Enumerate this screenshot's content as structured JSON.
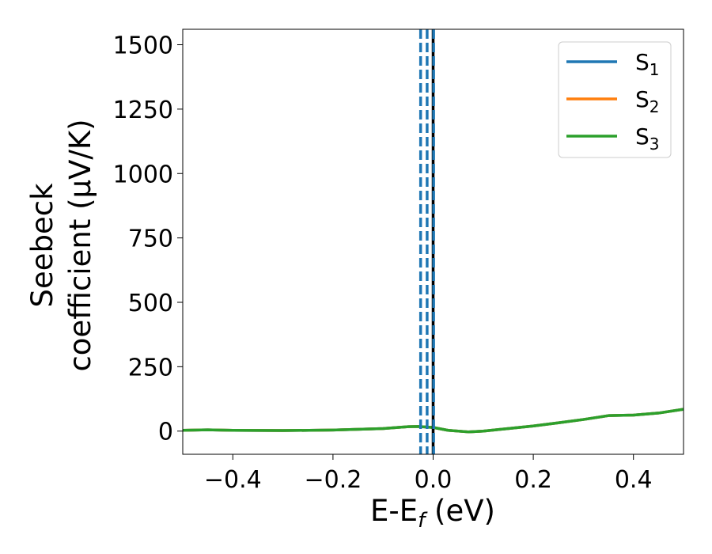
{
  "chart_data": {
    "type": "line",
    "xlabel": {
      "base": "E-E",
      "sub": "f",
      "unit": " (eV)"
    },
    "ylabel": {
      "line1": "Seebeck",
      "line2": "coefficient  (μV/K)"
    },
    "xlim": [
      -0.5,
      0.5
    ],
    "ylim": [
      -90,
      1560
    ],
    "xticks": [
      -0.4,
      -0.2,
      0.0,
      0.2,
      0.4
    ],
    "xtick_labels": [
      "−0.4",
      "−0.2",
      "0.0",
      "0.2",
      "0.4"
    ],
    "yticks": [
      0,
      250,
      500,
      750,
      1000,
      1250,
      1500
    ],
    "ytick_labels": [
      "0",
      "250",
      "500",
      "750",
      "1000",
      "1250",
      "1500"
    ],
    "legend": {
      "placement": "top-right",
      "entries": [
        {
          "base": "S",
          "sub": "1",
          "color": "#1f77b4"
        },
        {
          "base": "S",
          "sub": "2",
          "color": "#ff7f0e"
        },
        {
          "base": "S",
          "sub": "3",
          "color": "#2ca02c"
        }
      ]
    },
    "series": [
      {
        "name": "S1",
        "color": "#1f77b4",
        "x": [
          -0.5,
          -0.45,
          -0.4,
          -0.3,
          -0.2,
          -0.1,
          -0.05,
          -0.03,
          0.0,
          0.03,
          0.07,
          0.1,
          0.15,
          0.2,
          0.25,
          0.3,
          0.35,
          0.4,
          0.45,
          0.5
        ],
        "y": [
          3,
          5,
          3,
          2,
          4,
          10,
          17,
          18,
          14,
          3,
          -3,
          0,
          10,
          20,
          32,
          45,
          60,
          62,
          70,
          85
        ]
      },
      {
        "name": "S2",
        "color": "#ff7f0e",
        "x": [
          -0.5,
          -0.45,
          -0.4,
          -0.3,
          -0.2,
          -0.1,
          -0.05,
          -0.03,
          0.0,
          0.03,
          0.07,
          0.1,
          0.15,
          0.2,
          0.25,
          0.3,
          0.35,
          0.4,
          0.45,
          0.5
        ],
        "y": [
          3,
          5,
          3,
          2,
          4,
          10,
          17,
          18,
          14,
          3,
          -3,
          0,
          10,
          20,
          32,
          45,
          60,
          62,
          70,
          85
        ]
      },
      {
        "name": "S3",
        "color": "#2ca02c",
        "x": [
          -0.5,
          -0.45,
          -0.4,
          -0.3,
          -0.2,
          -0.1,
          -0.05,
          -0.03,
          0.0,
          0.03,
          0.07,
          0.1,
          0.15,
          0.2,
          0.25,
          0.3,
          0.35,
          0.4,
          0.45,
          0.5
        ],
        "y": [
          3,
          5,
          3,
          2,
          4,
          10,
          17,
          18,
          14,
          3,
          -3,
          0,
          10,
          20,
          32,
          45,
          60,
          62,
          70,
          85
        ]
      }
    ],
    "vlines": [
      {
        "x": -0.025,
        "color": "#1f77b4",
        "style": "dashed"
      },
      {
        "x": -0.012,
        "color": "#1f77b4",
        "style": "dashed"
      },
      {
        "x": 0.0,
        "color": "#000000",
        "style": "solid"
      },
      {
        "x": 0.001,
        "color": "#1f77b4",
        "style": "dashed"
      }
    ],
    "grid": false
  }
}
